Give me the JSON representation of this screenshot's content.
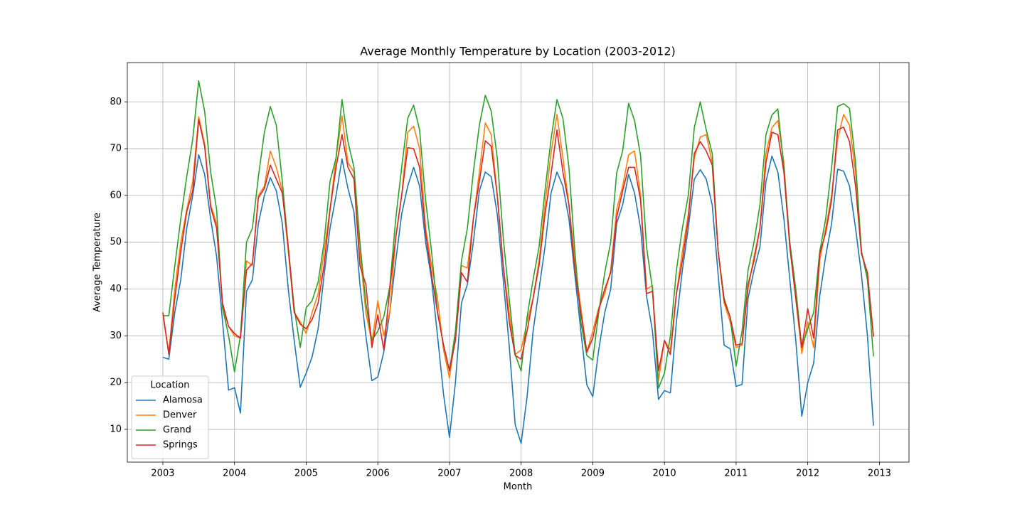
{
  "chart_data": {
    "type": "line",
    "title": "Average Monthly Temperature by Location (2003-2012)",
    "x_label": "Month",
    "y_label": "Average Temperature",
    "legend_title": "Location",
    "legend_position": "lower left",
    "grid": true,
    "xlim": [
      2002.504,
      2013.413
    ],
    "ylim": [
      3.0,
      88.4
    ],
    "xticks": [
      2003,
      2004,
      2005,
      2006,
      2007,
      2008,
      2009,
      2010,
      2011,
      2012,
      2013
    ],
    "yticks": [
      10,
      20,
      30,
      40,
      50,
      60,
      70,
      80
    ],
    "x": [
      2003,
      2003.083,
      2003.167,
      2003.25,
      2003.333,
      2003.417,
      2003.5,
      2003.583,
      2003.667,
      2003.75,
      2003.833,
      2003.917,
      2004,
      2004.083,
      2004.167,
      2004.25,
      2004.333,
      2004.417,
      2004.5,
      2004.583,
      2004.667,
      2004.75,
      2004.833,
      2004.917,
      2005,
      2005.083,
      2005.167,
      2005.25,
      2005.333,
      2005.417,
      2005.5,
      2005.583,
      2005.667,
      2005.75,
      2005.833,
      2005.917,
      2006,
      2006.083,
      2006.167,
      2006.25,
      2006.333,
      2006.417,
      2006.5,
      2006.583,
      2006.667,
      2006.75,
      2006.833,
      2006.917,
      2007,
      2007.083,
      2007.167,
      2007.25,
      2007.333,
      2007.417,
      2007.5,
      2007.583,
      2007.667,
      2007.75,
      2007.833,
      2007.917,
      2008,
      2008.083,
      2008.167,
      2008.25,
      2008.333,
      2008.417,
      2008.5,
      2008.583,
      2008.667,
      2008.75,
      2008.833,
      2008.917,
      2009,
      2009.083,
      2009.167,
      2009.25,
      2009.333,
      2009.417,
      2009.5,
      2009.583,
      2009.667,
      2009.75,
      2009.833,
      2009.917,
      2010,
      2010.083,
      2010.167,
      2010.25,
      2010.333,
      2010.417,
      2010.5,
      2010.583,
      2010.667,
      2010.75,
      2010.833,
      2010.917,
      2011,
      2011.083,
      2011.167,
      2011.25,
      2011.333,
      2011.417,
      2011.5,
      2011.583,
      2011.667,
      2011.75,
      2011.833,
      2011.917,
      2012,
      2012.083,
      2012.167,
      2012.25,
      2012.333,
      2012.417,
      2012.5,
      2012.583,
      2012.667,
      2012.75,
      2012.833,
      2012.917
    ],
    "series": [
      {
        "name": "Alamosa",
        "color": "#1f77b4",
        "values": [
          25.4,
          25,
          35,
          42,
          53,
          60,
          68.7,
          64.5,
          55,
          47,
          33,
          18.4,
          18.9,
          13.5,
          39.5,
          42,
          54,
          60,
          63.8,
          61,
          54,
          40,
          29,
          19,
          22,
          25.5,
          31.5,
          43,
          53,
          60,
          67.8,
          61.5,
          56.5,
          41,
          30,
          20.4,
          21.2,
          26.5,
          35,
          46,
          56,
          62,
          66,
          62,
          50,
          42,
          30,
          17.5,
          8.3,
          20,
          37,
          41,
          50,
          61,
          65,
          64,
          56,
          42,
          28,
          11,
          7,
          17,
          31,
          40,
          49,
          60.5,
          65,
          62,
          55,
          43,
          31,
          19.5,
          17,
          27,
          35,
          40,
          54,
          58,
          64.5,
          60.5,
          53,
          38.5,
          31,
          16.4,
          18.3,
          17.8,
          33,
          44,
          53,
          63.5,
          65.5,
          63.5,
          58,
          43,
          28,
          27.2,
          19.2,
          19.6,
          38,
          44,
          49,
          63,
          68.4,
          65,
          55,
          42,
          29,
          12.8,
          20,
          24.2,
          38.5,
          47,
          54,
          65.6,
          65.2,
          62,
          53,
          43,
          30,
          10.8
        ]
      },
      {
        "name": "Denver",
        "color": "#ff7f0e",
        "values": [
          34.5,
          26.5,
          40,
          50,
          57,
          63,
          76.8,
          71,
          58,
          54,
          36,
          32,
          30,
          29.5,
          46,
          45,
          60,
          62,
          69.5,
          66,
          61,
          48,
          35,
          33,
          30.5,
          35,
          39,
          48,
          57,
          68,
          77,
          67,
          65,
          48,
          35,
          28.5,
          37.5,
          30,
          35,
          51,
          60,
          73.5,
          74.8,
          70,
          53,
          45,
          38,
          27,
          21,
          30,
          45,
          44.5,
          55,
          65,
          75.5,
          73,
          60,
          45,
          35,
          26,
          27,
          33,
          38,
          46,
          58,
          69,
          77.3,
          68,
          58,
          46,
          36,
          26.5,
          31,
          36,
          39,
          44,
          57,
          62,
          68.7,
          69.5,
          60,
          40,
          40.7,
          20.5,
          29,
          27,
          39,
          48,
          56,
          68,
          72.5,
          73,
          67,
          48,
          37,
          33,
          27.5,
          28,
          40,
          47,
          53,
          69,
          74.5,
          76,
          67,
          49,
          38,
          26.2,
          33,
          27.5,
          46,
          53,
          60,
          72,
          77.3,
          75,
          65,
          48,
          43,
          30
        ]
      },
      {
        "name": "Grand",
        "color": "#2ca02c",
        "values": [
          34.3,
          34.3,
          45,
          55,
          64,
          72,
          84.5,
          78,
          65,
          57,
          36,
          30,
          22.3,
          30,
          50,
          53,
          64,
          73.5,
          79,
          75,
          63,
          49,
          36,
          27.5,
          36,
          37.5,
          41.5,
          50,
          63,
          68,
          80.5,
          71.5,
          66,
          50,
          37,
          29,
          31,
          34,
          40.5,
          55,
          66,
          76.5,
          79.3,
          74,
          59,
          48,
          35,
          28,
          22.5,
          31,
          46,
          53,
          65,
          75,
          81.4,
          78,
          68,
          51,
          38,
          26,
          22.5,
          34,
          42,
          49,
          61,
          72,
          80.5,
          76.5,
          66,
          48,
          33,
          25.8,
          24.8,
          35,
          43.5,
          50,
          64.8,
          69.5,
          79.7,
          76,
          68.5,
          49,
          40,
          18.8,
          22,
          30,
          44,
          53,
          60,
          74.5,
          80,
          74,
          69,
          48,
          38,
          34,
          23.5,
          31,
          44,
          50,
          58,
          73,
          77.2,
          78.5,
          66,
          50,
          40,
          27.5,
          31.5,
          35,
          48,
          55,
          66,
          79,
          79.6,
          78.6,
          67,
          48,
          42,
          25.6
        ]
      },
      {
        "name": "Springs",
        "color": "#d62728",
        "values": [
          35,
          26,
          38,
          48,
          56.5,
          61,
          76.2,
          70.5,
          57.5,
          53,
          37,
          32,
          30.5,
          29.5,
          44,
          45.5,
          59.5,
          61.5,
          66.5,
          63.5,
          60.5,
          49,
          35,
          32.5,
          31.5,
          33.5,
          37,
          45,
          57,
          66,
          73,
          66,
          63.5,
          45,
          41,
          27.5,
          34.5,
          27,
          40,
          51,
          60,
          70.2,
          70,
          66,
          52,
          43,
          35,
          28,
          22.5,
          29,
          43.5,
          41.5,
          55,
          63,
          71.7,
          70.5,
          60,
          45,
          33,
          25.8,
          25,
          31,
          38,
          45,
          56,
          64.5,
          74,
          65,
          58,
          44,
          35,
          26.5,
          29.5,
          35.5,
          40,
          43.5,
          55.3,
          61,
          66,
          66,
          59,
          39,
          39.5,
          22.5,
          29,
          26,
          39,
          46,
          55,
          69,
          71.5,
          69.5,
          66.5,
          48,
          37.5,
          34,
          28,
          28.3,
          41,
          46,
          53,
          67,
          73.5,
          73,
          65,
          49,
          38,
          27.5,
          35.8,
          29.5,
          47.5,
          52,
          59,
          74,
          74.6,
          71.5,
          62,
          47.5,
          43.5,
          29.8
        ]
      }
    ]
  }
}
